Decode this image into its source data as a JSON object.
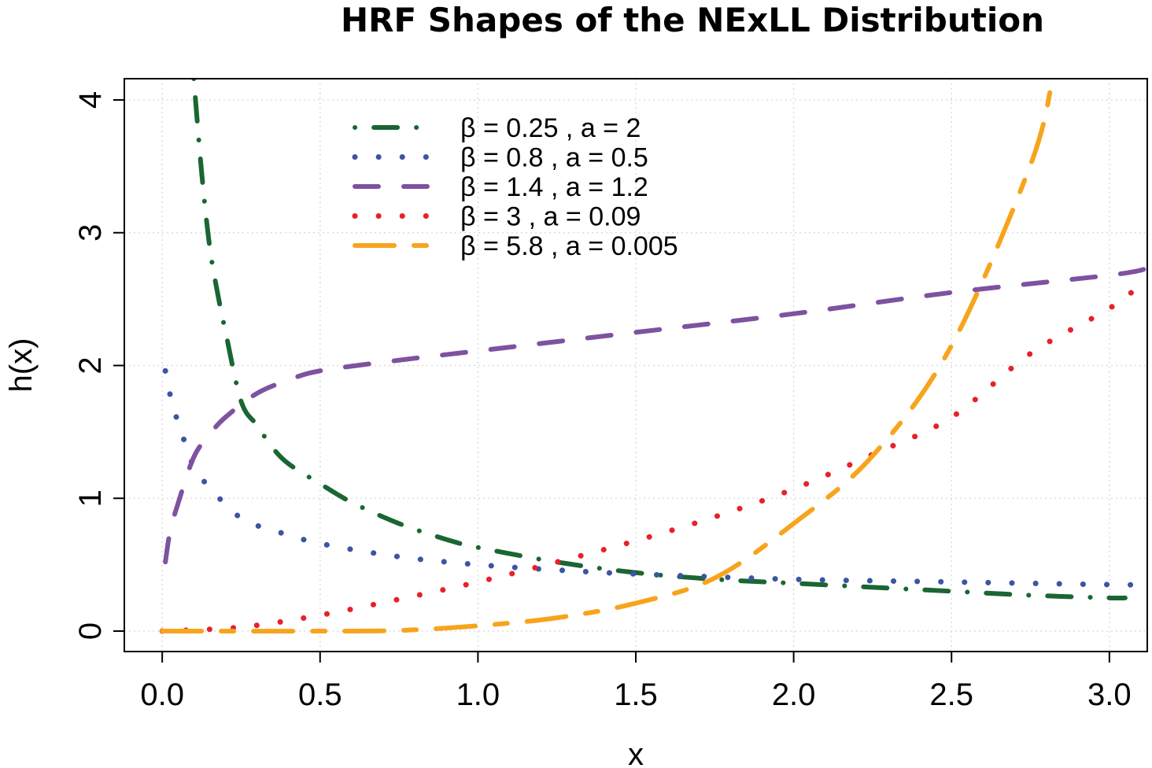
{
  "chart_data": {
    "type": "line",
    "title": "HRF Shapes of the NExLL Distribution",
    "xlabel": "x",
    "ylabel": "h(x)",
    "xlim": [
      -0.12,
      3.12
    ],
    "ylim": [
      -0.154,
      4.16
    ],
    "xticks": [
      "0.0",
      "0.5",
      "1.0",
      "1.5",
      "2.0",
      "2.5",
      "3.0"
    ],
    "xtick_values": [
      0,
      0.5,
      1,
      1.5,
      2,
      2.5,
      3
    ],
    "yticks": [
      "0",
      "1",
      "2",
      "3",
      "4"
    ],
    "ytick_values": [
      0,
      1,
      2,
      3,
      4
    ],
    "grid": true,
    "legend_position": "top-center",
    "series": [
      {
        "name": "β = 0.25 ,  a = 2",
        "color": "#1a6633",
        "dash": "dotdash",
        "x": [
          0.1,
          0.125,
          0.15,
          0.175,
          0.2,
          0.25,
          0.3,
          0.35,
          0.4,
          0.5,
          0.6,
          0.75,
          0.9,
          1.0,
          1.25,
          1.5,
          1.75,
          2.0,
          2.25,
          2.5,
          2.75,
          3.0,
          3.05
        ],
        "y": [
          4.16,
          3.45,
          2.9,
          2.55,
          2.26,
          1.73,
          1.55,
          1.38,
          1.26,
          1.11,
          0.97,
          0.81,
          0.69,
          0.63,
          0.52,
          0.44,
          0.39,
          0.36,
          0.33,
          0.3,
          0.27,
          0.25,
          0.25
        ]
      },
      {
        "name": "β = 0.8 ,  a = 0.5",
        "color": "#3a55a4",
        "dash": "dotted",
        "x": [
          0.01,
          0.025,
          0.05,
          0.075,
          0.1,
          0.15,
          0.25,
          0.35,
          0.5,
          0.75,
          1.0,
          1.25,
          1.5,
          2.0,
          2.5,
          3.0,
          3.12
        ],
        "y": [
          1.96,
          1.78,
          1.57,
          1.4,
          1.24,
          1.08,
          0.85,
          0.76,
          0.66,
          0.56,
          0.5,
          0.46,
          0.43,
          0.39,
          0.37,
          0.35,
          0.35
        ]
      },
      {
        "name": "β = 1.4 ,  a = 1.2",
        "color": "#7e52a0",
        "dash": "dashed",
        "x": [
          0.01,
          0.025,
          0.05,
          0.1,
          0.15,
          0.2,
          0.3,
          0.4,
          0.5,
          0.75,
          1.0,
          1.25,
          1.5,
          2.0,
          2.5,
          3.0,
          3.12
        ],
        "y": [
          0.52,
          0.75,
          0.96,
          1.31,
          1.48,
          1.61,
          1.79,
          1.89,
          1.96,
          2.04,
          2.11,
          2.18,
          2.25,
          2.39,
          2.55,
          2.68,
          2.73
        ]
      },
      {
        "name": "β = 3 ,  a = 0.09",
        "color": "#e8202a",
        "dash": "dotted",
        "x": [
          0,
          0.25,
          0.5,
          0.75,
          1.0,
          1.25,
          1.5,
          1.75,
          2.0,
          2.25,
          2.5,
          2.75,
          3.0,
          3.12
        ],
        "y": [
          0,
          0.03,
          0.12,
          0.24,
          0.37,
          0.52,
          0.68,
          0.86,
          1.07,
          1.33,
          1.61,
          2.09,
          2.43,
          2.65
        ]
      },
      {
        "name": "β = 5.8 ,  a = 0.005",
        "color": "#f7a41d",
        "dash": "longdash",
        "x": [
          0,
          0.5,
          0.75,
          1.0,
          1.25,
          1.5,
          1.75,
          2.0,
          2.25,
          2.5,
          2.75,
          2.82
        ],
        "y": [
          0,
          0.0,
          0.005,
          0.04,
          0.1,
          0.21,
          0.4,
          0.81,
          1.32,
          2.15,
          3.51,
          4.16
        ]
      }
    ]
  }
}
